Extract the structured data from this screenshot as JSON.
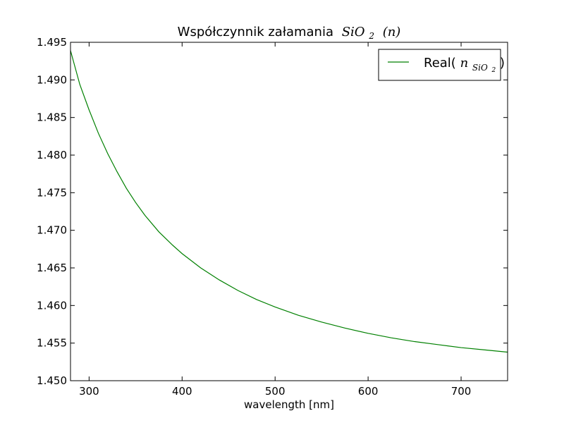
{
  "chart_data": {
    "type": "line",
    "title": {
      "prefix": "Współczynnik załamania",
      "math_symbol": "SiO",
      "math_subscript": "2",
      "math_suffix": "(n)"
    },
    "xlabel": "wavelength [nm]",
    "ylabel": "",
    "xlim": [
      280,
      750
    ],
    "ylim": [
      1.45,
      1.495
    ],
    "xticks": [
      300,
      400,
      500,
      600,
      700
    ],
    "yticks": [
      1.45,
      1.455,
      1.46,
      1.465,
      1.47,
      1.475,
      1.48,
      1.485,
      1.49,
      1.495
    ],
    "ytick_labels": [
      "1.450",
      "1.455",
      "1.460",
      "1.465",
      "1.470",
      "1.475",
      "1.480",
      "1.485",
      "1.490",
      "1.495"
    ],
    "xtick_labels": [
      "300",
      "400",
      "500",
      "600",
      "700"
    ],
    "grid": false,
    "legend_position": "top-right",
    "series": [
      {
        "name": "Real(n_SiO2)",
        "legend_label": {
          "prefix": "Real(",
          "math_n": "n",
          "math_subscript": "SiO",
          "math_subsubscript": "2",
          "suffix": ")"
        },
        "color": "#008000",
        "x": [
          280,
          290,
          300,
          310,
          320,
          330,
          340,
          350,
          360,
          375,
          390,
          400,
          420,
          440,
          460,
          480,
          500,
          525,
          550,
          575,
          600,
          625,
          650,
          675,
          700,
          725,
          750
        ],
        "y": [
          1.4939,
          1.4894,
          1.486,
          1.4829,
          1.4802,
          1.4778,
          1.4756,
          1.4737,
          1.472,
          1.4698,
          1.468,
          1.4669,
          1.465,
          1.4634,
          1.462,
          1.4608,
          1.4598,
          1.4587,
          1.4578,
          1.457,
          1.4563,
          1.4557,
          1.4552,
          1.4548,
          1.4544,
          1.4541,
          1.4538
        ]
      }
    ]
  }
}
